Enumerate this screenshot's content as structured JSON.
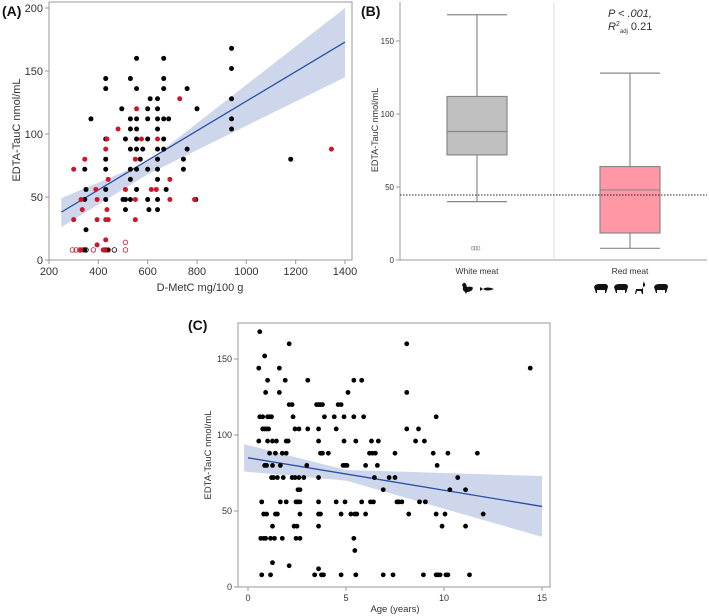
{
  "chart_data": [
    {
      "panel": "(A)",
      "type": "scatter",
      "xlabel": "D-MetC mg/100 g",
      "ylabel": "EDTA-TauC nmol/mL",
      "xlim": [
        200,
        1430
      ],
      "ylim": [
        0,
        206
      ],
      "xticks": [
        200,
        400,
        600,
        800,
        1000,
        1200,
        1400
      ],
      "yticks": [
        0,
        50,
        100,
        150,
        200
      ],
      "colors": {
        "black": "#000000",
        "red": "#d0152b",
        "fit": "#2a4fa8",
        "band": "#c4cfe6"
      },
      "series": [
        {
          "name": "black",
          "points": [
            [
              940,
              168
            ],
            [
              940,
              152
            ],
            [
              940,
              128
            ],
            [
              940,
              112
            ],
            [
              940,
              104
            ],
            [
              555,
              160
            ],
            [
              665,
              160
            ],
            [
              430,
              144
            ],
            [
              530,
              144
            ],
            [
              665,
              144
            ],
            [
              430,
              136
            ],
            [
              555,
              136
            ],
            [
              665,
              136
            ],
            [
              760,
              136
            ],
            [
              610,
              128
            ],
            [
              640,
              128
            ],
            [
              495,
              120
            ],
            [
              600,
              120
            ],
            [
              640,
              120
            ],
            [
              800,
              120
            ],
            [
              370,
              112
            ],
            [
              530,
              112
            ],
            [
              555,
              112
            ],
            [
              600,
              112
            ],
            [
              640,
              112
            ],
            [
              665,
              112
            ],
            [
              685,
              112
            ],
            [
              430,
              96
            ],
            [
              510,
              96
            ],
            [
              555,
              96
            ],
            [
              600,
              96
            ],
            [
              665,
              96
            ],
            [
              530,
              104
            ],
            [
              555,
              104
            ],
            [
              640,
              104
            ],
            [
              530,
              88
            ],
            [
              555,
              88
            ],
            [
              580,
              88
            ],
            [
              640,
              88
            ],
            [
              665,
              88
            ],
            [
              760,
              88
            ],
            [
              430,
              80
            ],
            [
              570,
              80
            ],
            [
              640,
              80
            ],
            [
              745,
              80
            ],
            [
              1180,
              80
            ],
            [
              345,
              72
            ],
            [
              430,
              72
            ],
            [
              530,
              72
            ],
            [
              555,
              72
            ],
            [
              600,
              72
            ],
            [
              640,
              72
            ],
            [
              745,
              72
            ],
            [
              350,
              56
            ],
            [
              430,
              56
            ],
            [
              530,
              64
            ],
            [
              555,
              56
            ],
            [
              640,
              64
            ],
            [
              675,
              56
            ],
            [
              345,
              48
            ],
            [
              430,
              48
            ],
            [
              500,
              48
            ],
            [
              510,
              48
            ],
            [
              530,
              48
            ],
            [
              600,
              48
            ],
            [
              640,
              48
            ],
            [
              795,
              48
            ],
            [
              510,
              40
            ],
            [
              605,
              40
            ],
            [
              640,
              40
            ],
            [
              350,
              24
            ],
            [
              340,
              8
            ],
            [
              345,
              8
            ],
            [
              430,
              8
            ],
            [
              440,
              8
            ]
          ]
        },
        {
          "name": "red",
          "points": [
            [
              300,
              72
            ],
            [
              345,
              80
            ],
            [
              430,
              88
            ],
            [
              435,
              96
            ],
            [
              480,
              104
            ],
            [
              555,
              120
            ],
            [
              575,
              96
            ],
            [
              640,
              96
            ],
            [
              730,
              128
            ],
            [
              1345,
              88
            ],
            [
              550,
              80
            ],
            [
              440,
              64
            ],
            [
              390,
              56
            ],
            [
              615,
              56
            ],
            [
              510,
              56
            ],
            [
              690,
              64
            ],
            [
              300,
              32
            ],
            [
              335,
              40
            ],
            [
              395,
              48
            ],
            [
              330,
              48
            ],
            [
              550,
              48
            ],
            [
              635,
              56
            ],
            [
              690,
              48
            ],
            [
              790,
              48
            ],
            [
              395,
              32
            ],
            [
              430,
              32
            ],
            [
              440,
              32
            ],
            [
              435,
              40
            ],
            [
              550,
              32
            ],
            [
              430,
              16
            ],
            [
              395,
              12
            ],
            [
              330,
              8
            ],
            [
              420,
              8
            ]
          ]
        },
        {
          "name": "red-open",
          "points": [
            [
              295,
              8
            ],
            [
              310,
              8
            ],
            [
              325,
              8
            ],
            [
              380,
              8
            ],
            [
              425,
              8
            ],
            [
              440,
              8
            ],
            [
              510,
              8
            ],
            [
              510,
              14
            ]
          ]
        },
        {
          "name": "black-open",
          "points": [
            [
              350,
              8
            ],
            [
              465,
              8
            ]
          ]
        }
      ],
      "fit": {
        "x": [
          250,
          1400
        ],
        "y": [
          38,
          173
        ]
      },
      "ci_band": {
        "x": [
          250,
          600,
          1400
        ],
        "lower": [
          26,
          68,
          145
        ],
        "upper": [
          49,
          78,
          200
        ]
      }
    },
    {
      "panel": "(B)",
      "type": "box",
      "ylabel": "EDTA-TauC nmol/mL",
      "ylim": [
        0,
        178
      ],
      "yticks": [
        0,
        50,
        100,
        150
      ],
      "categories": [
        "White meat",
        "Red meat"
      ],
      "boxes": [
        {
          "name": "White meat",
          "whisker_low": 40,
          "q1": 72,
          "median": 88,
          "q3": 112,
          "whisker_high": 168,
          "outliers": [
            8,
            8,
            8
          ],
          "color": "#c0c0c0",
          "icons": [
            "chicken-icon",
            "fish-icon"
          ]
        },
        {
          "name": "Red meat",
          "whisker_low": 8,
          "q1": 18.5,
          "median": 48,
          "q3": 64,
          "whisker_high": 128,
          "outliers": [],
          "color": "#ff97a5",
          "icons": [
            "sheep-icon",
            "cow-icon",
            "deer-icon",
            "pig-icon"
          ]
        }
      ],
      "reference_line": 44.5,
      "annotation": {
        "p": "P < .001,",
        "r2_prefix": "R",
        "r2_sup": "2",
        "r2_sub": "adj",
        "r2_value": " 0.21"
      }
    },
    {
      "panel": "(C)",
      "type": "scatter",
      "xlabel": "Age (years)",
      "ylabel": "EDTA-TauC nmol/mL",
      "xlim": [
        -0.5,
        15.4
      ],
      "ylim": [
        0,
        174
      ],
      "xticks": [
        0,
        5,
        10,
        15
      ],
      "yticks": [
        0,
        50,
        100,
        150
      ],
      "rows": {
        "168": [
          0.6
        ],
        "160": [
          2.1,
          8.1
        ],
        "152": [
          0.85
        ],
        "144": [
          0.55,
          1.6,
          14.4
        ],
        "136": [
          1.0,
          1.9,
          3.05,
          5.4,
          5.8
        ],
        "128": [
          0.9,
          1.6,
          5.1,
          8.1
        ],
        "120": [
          2.1,
          2.25,
          3.5,
          3.6,
          3.7,
          3.8,
          4.6,
          4.75
        ],
        "112": [
          0.6,
          0.75,
          1.0,
          1.1,
          1.2,
          2.3,
          3.9,
          4.4,
          4.9,
          5.4,
          5.9,
          9.6
        ],
        "104": [
          0.75,
          0.85,
          0.95,
          1.05,
          2.4,
          2.6,
          3.05,
          3.6,
          4.5,
          8.1,
          8.7
        ],
        "96": [
          0.55,
          1.0,
          1.25,
          1.45,
          1.95,
          2.05,
          3.6,
          4.9,
          5.5,
          6.3,
          6.65,
          8.55,
          9.0
        ],
        "88": [
          1.1,
          1.4,
          1.75,
          1.95,
          3.7,
          3.8,
          4.1,
          6.2,
          6.35,
          6.5,
          7.5,
          9.45,
          10.2,
          11.7
        ],
        "80": [
          0.85,
          0.95,
          1.25,
          1.65,
          3.0,
          4.85,
          4.95,
          5.05,
          6.0,
          6.6,
          9.65
        ],
        "72": [
          1.2,
          1.3,
          1.5,
          1.8,
          2.25,
          2.4,
          2.6,
          2.85,
          3.6,
          6.45,
          7.2,
          7.5,
          10.7
        ],
        "64": [
          2.55,
          2.65,
          6.9,
          10.3,
          11.1
        ],
        "56": [
          0.7,
          1.65,
          1.95,
          2.45,
          2.55,
          2.65,
          3.6,
          4.5,
          4.95,
          5.8,
          6.25,
          6.4,
          7.6,
          7.7,
          7.85,
          8.75,
          9.05
        ],
        "48": [
          0.8,
          0.95,
          1.4,
          1.5,
          2.65,
          3.6,
          3.7,
          4.75,
          5.25,
          5.45,
          5.55,
          6.0,
          8.2,
          9.6,
          10.05,
          12.0
        ],
        "40": [
          1.25,
          2.35,
          2.5,
          3.6,
          9.9,
          11.1
        ],
        "32": [
          0.65,
          0.8,
          0.9,
          1.15,
          1.35,
          1.75,
          2.45,
          2.65,
          5.4
        ],
        "24": [
          5.45
        ],
        "16": [
          1.25
        ],
        "14": [
          2.1
        ],
        "12": [
          3.6
        ],
        "8": [
          0.7,
          1.15,
          3.4,
          3.75,
          3.85,
          4.75,
          5.5,
          6.9,
          7.4,
          8.95,
          9.6,
          9.7,
          9.8,
          10.1,
          10.2,
          11.3
        ]
      },
      "fit": {
        "x": [
          0,
          15
        ],
        "y": [
          85,
          53
        ]
      },
      "ci_band": {
        "x": [
          -0.2,
          5,
          15
        ],
        "lower": [
          76,
          70,
          33
        ],
        "upper": [
          94,
          77,
          73
        ]
      }
    }
  ]
}
